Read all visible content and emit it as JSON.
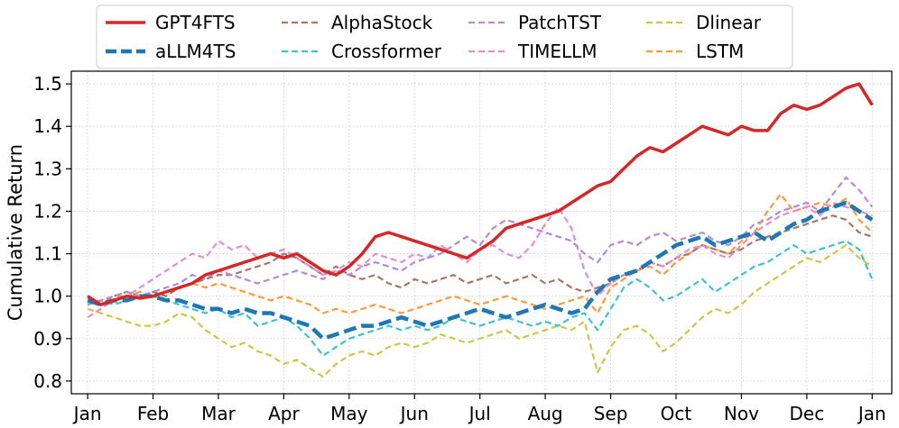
{
  "chart_data": {
    "type": "line",
    "title": "",
    "xlabel": "",
    "ylabel": "Cumulative Return",
    "ylim": [
      0.77,
      1.53
    ],
    "xlim": [
      -0.25,
      12.3
    ],
    "yticks": [
      0.8,
      0.9,
      1.0,
      1.1,
      1.2,
      1.3,
      1.4,
      1.5
    ],
    "ytick_labels": [
      "0.8",
      "0.9",
      "1.0",
      "1.1",
      "1.2",
      "1.3",
      "1.4",
      "1.5"
    ],
    "xticks": [
      0,
      1,
      2,
      3,
      4,
      5,
      6,
      7,
      8,
      9,
      10,
      11,
      12
    ],
    "xtick_labels": [
      "Jan",
      "Feb",
      "Mar",
      "Apr",
      "May",
      "Jun",
      "Jul",
      "Aug",
      "Sep",
      "Oct",
      "Nov",
      "Dec",
      "Jan"
    ],
    "grid": true,
    "legend_position": "top-outside",
    "legend_columns": 4,
    "series": [
      {
        "name": "GPT4FTS",
        "color": "#d62728",
        "style": "solid",
        "width": 3.5,
        "x": [
          0,
          0.2,
          0.4,
          0.6,
          0.8,
          1.0,
          1.2,
          1.4,
          1.6,
          1.8,
          2.0,
          2.2,
          2.4,
          2.6,
          2.8,
          3.0,
          3.2,
          3.4,
          3.6,
          3.8,
          4.0,
          4.2,
          4.4,
          4.6,
          4.8,
          5.0,
          5.2,
          5.4,
          5.6,
          5.8,
          6.0,
          6.2,
          6.4,
          6.6,
          6.8,
          7.0,
          7.2,
          7.4,
          7.6,
          7.8,
          8.0,
          8.2,
          8.4,
          8.6,
          8.8,
          9.0,
          9.2,
          9.4,
          9.6,
          9.8,
          10.0,
          10.2,
          10.4,
          10.6,
          10.8,
          11.0,
          11.2,
          11.4,
          11.6,
          11.8,
          12.0
        ],
        "y": [
          1.0,
          0.98,
          0.99,
          1.0,
          0.995,
          1.0,
          1.01,
          1.02,
          1.03,
          1.05,
          1.06,
          1.07,
          1.08,
          1.09,
          1.1,
          1.09,
          1.1,
          1.08,
          1.06,
          1.05,
          1.07,
          1.1,
          1.14,
          1.15,
          1.14,
          1.13,
          1.12,
          1.11,
          1.1,
          1.09,
          1.11,
          1.13,
          1.16,
          1.17,
          1.18,
          1.19,
          1.2,
          1.22,
          1.24,
          1.26,
          1.27,
          1.3,
          1.33,
          1.35,
          1.34,
          1.36,
          1.38,
          1.4,
          1.39,
          1.38,
          1.4,
          1.39,
          1.39,
          1.43,
          1.45,
          1.44,
          1.45,
          1.47,
          1.49,
          1.5,
          1.45
        ]
      },
      {
        "name": "aLLM4TS",
        "color": "#1f77b4",
        "style": "dash",
        "width": 4.5,
        "x": [
          0,
          0.2,
          0.4,
          0.6,
          0.8,
          1.0,
          1.2,
          1.4,
          1.6,
          1.8,
          2.0,
          2.2,
          2.4,
          2.6,
          2.8,
          3.0,
          3.2,
          3.4,
          3.6,
          3.8,
          4.0,
          4.2,
          4.4,
          4.6,
          4.8,
          5.0,
          5.2,
          5.4,
          5.6,
          5.8,
          6.0,
          6.2,
          6.4,
          6.6,
          6.8,
          7.0,
          7.2,
          7.4,
          7.6,
          7.8,
          8.0,
          8.2,
          8.4,
          8.6,
          8.8,
          9.0,
          9.2,
          9.4,
          9.6,
          9.8,
          10.0,
          10.2,
          10.4,
          10.6,
          10.8,
          11.0,
          11.2,
          11.4,
          11.6,
          11.8,
          12.0
        ],
        "y": [
          0.99,
          0.98,
          0.99,
          0.99,
          1.0,
          1.0,
          0.99,
          0.99,
          0.98,
          0.97,
          0.97,
          0.96,
          0.97,
          0.96,
          0.96,
          0.95,
          0.94,
          0.93,
          0.9,
          0.91,
          0.92,
          0.93,
          0.93,
          0.94,
          0.95,
          0.94,
          0.93,
          0.94,
          0.95,
          0.96,
          0.97,
          0.96,
          0.95,
          0.96,
          0.97,
          0.98,
          0.97,
          0.96,
          0.97,
          1.01,
          1.04,
          1.05,
          1.06,
          1.08,
          1.1,
          1.12,
          1.13,
          1.14,
          1.12,
          1.13,
          1.14,
          1.15,
          1.13,
          1.15,
          1.17,
          1.18,
          1.2,
          1.21,
          1.22,
          1.2,
          1.18
        ]
      },
      {
        "name": "AlphaStock",
        "color": "#a57764",
        "style": "dash",
        "width": 2.2,
        "x": [
          0,
          0.2,
          0.4,
          0.6,
          0.8,
          1.0,
          1.2,
          1.4,
          1.6,
          1.8,
          2.0,
          2.2,
          2.4,
          2.6,
          2.8,
          3.0,
          3.2,
          3.4,
          3.6,
          3.8,
          4.0,
          4.2,
          4.4,
          4.6,
          4.8,
          5.0,
          5.2,
          5.4,
          5.6,
          5.8,
          6.0,
          6.2,
          6.4,
          6.6,
          6.8,
          7.0,
          7.2,
          7.4,
          7.6,
          7.8,
          8.0,
          8.2,
          8.4,
          8.6,
          8.8,
          9.0,
          9.2,
          9.4,
          9.6,
          9.8,
          10.0,
          10.2,
          10.4,
          10.6,
          10.8,
          11.0,
          11.2,
          11.4,
          11.6,
          11.8,
          12.0
        ],
        "y": [
          0.99,
          0.98,
          1.0,
          1.01,
          1.0,
          1.01,
          1.0,
          1.02,
          1.03,
          1.04,
          1.05,
          1.05,
          1.06,
          1.07,
          1.08,
          1.1,
          1.09,
          1.07,
          1.05,
          1.07,
          1.05,
          1.04,
          1.05,
          1.03,
          1.02,
          1.04,
          1.03,
          1.04,
          1.05,
          1.03,
          1.04,
          1.05,
          1.03,
          1.04,
          1.05,
          1.03,
          1.04,
          1.02,
          1.01,
          1.02,
          1.03,
          1.05,
          1.06,
          1.08,
          1.07,
          1.09,
          1.1,
          1.12,
          1.11,
          1.1,
          1.11,
          1.13,
          1.14,
          1.15,
          1.16,
          1.17,
          1.18,
          1.19,
          1.18,
          1.15,
          1.14
        ]
      },
      {
        "name": "Crossformer",
        "color": "#3ec1d5",
        "style": "dash",
        "width": 2.2,
        "x": [
          0,
          0.2,
          0.4,
          0.6,
          0.8,
          1.0,
          1.2,
          1.4,
          1.6,
          1.8,
          2.0,
          2.2,
          2.4,
          2.6,
          2.8,
          3.0,
          3.2,
          3.4,
          3.6,
          3.8,
          4.0,
          4.2,
          4.4,
          4.6,
          4.8,
          5.0,
          5.2,
          5.4,
          5.6,
          5.8,
          6.0,
          6.2,
          6.4,
          6.6,
          6.8,
          7.0,
          7.2,
          7.4,
          7.6,
          7.8,
          8.0,
          8.2,
          8.4,
          8.6,
          8.8,
          9.0,
          9.2,
          9.4,
          9.6,
          9.8,
          10.0,
          10.2,
          10.4,
          10.6,
          10.8,
          11.0,
          11.2,
          11.4,
          11.6,
          11.8,
          12.0
        ],
        "y": [
          0.98,
          0.99,
          0.98,
          0.99,
          1.0,
          1.0,
          0.99,
          0.98,
          0.97,
          0.96,
          0.97,
          0.95,
          0.96,
          0.93,
          0.94,
          0.95,
          0.93,
          0.9,
          0.86,
          0.88,
          0.9,
          0.91,
          0.92,
          0.93,
          0.92,
          0.93,
          0.92,
          0.93,
          0.95,
          0.94,
          0.93,
          0.94,
          0.95,
          0.94,
          0.93,
          0.94,
          0.93,
          0.95,
          0.96,
          0.92,
          0.97,
          1.02,
          1.04,
          1.02,
          0.99,
          1.0,
          1.02,
          1.04,
          1.01,
          1.03,
          1.05,
          1.07,
          1.08,
          1.1,
          1.12,
          1.1,
          1.11,
          1.12,
          1.13,
          1.11,
          1.04
        ]
      },
      {
        "name": "PatchTST",
        "color": "#b08cd4",
        "style": "dash",
        "width": 2.2,
        "x": [
          0,
          0.2,
          0.4,
          0.6,
          0.8,
          1.0,
          1.2,
          1.4,
          1.6,
          1.8,
          2.0,
          2.2,
          2.4,
          2.6,
          2.8,
          3.0,
          3.2,
          3.4,
          3.6,
          3.8,
          4.0,
          4.2,
          4.4,
          4.6,
          4.8,
          5.0,
          5.2,
          5.4,
          5.6,
          5.8,
          6.0,
          6.2,
          6.4,
          6.6,
          6.8,
          7.0,
          7.2,
          7.4,
          7.6,
          7.8,
          8.0,
          8.2,
          8.4,
          8.6,
          8.8,
          9.0,
          9.2,
          9.4,
          9.6,
          9.8,
          10.0,
          10.2,
          10.4,
          10.6,
          10.8,
          11.0,
          11.2,
          11.4,
          11.6,
          11.8,
          12.0
        ],
        "y": [
          0.98,
          0.99,
          1.0,
          1.01,
          1.0,
          1.01,
          1.02,
          1.03,
          1.05,
          1.04,
          1.06,
          1.05,
          1.04,
          1.03,
          1.04,
          1.05,
          1.06,
          1.05,
          1.04,
          1.06,
          1.05,
          1.07,
          1.08,
          1.07,
          1.06,
          1.08,
          1.09,
          1.1,
          1.12,
          1.14,
          1.12,
          1.16,
          1.18,
          1.17,
          1.16,
          1.15,
          1.14,
          1.13,
          1.1,
          1.08,
          1.12,
          1.13,
          1.12,
          1.14,
          1.15,
          1.13,
          1.14,
          1.15,
          1.13,
          1.12,
          1.14,
          1.17,
          1.18,
          1.2,
          1.21,
          1.22,
          1.2,
          1.24,
          1.28,
          1.25,
          1.21
        ]
      },
      {
        "name": "TIMELLM",
        "color": "#e68ecb",
        "style": "dash",
        "width": 2.2,
        "x": [
          0,
          0.2,
          0.4,
          0.6,
          0.8,
          1.0,
          1.2,
          1.4,
          1.6,
          1.8,
          2.0,
          2.2,
          2.4,
          2.6,
          2.8,
          3.0,
          3.2,
          3.4,
          3.6,
          3.8,
          4.0,
          4.2,
          4.4,
          4.6,
          4.8,
          5.0,
          5.2,
          5.4,
          5.6,
          5.8,
          6.0,
          6.2,
          6.4,
          6.6,
          6.8,
          7.0,
          7.2,
          7.4,
          7.6,
          7.8,
          8.0,
          8.2,
          8.4,
          8.6,
          8.8,
          9.0,
          9.2,
          9.4,
          9.6,
          9.8,
          10.0,
          10.2,
          10.4,
          10.6,
          10.8,
          11.0,
          11.2,
          11.4,
          11.6,
          11.8,
          12.0
        ],
        "y": [
          0.95,
          0.97,
          0.99,
          1.0,
          1.02,
          1.04,
          1.06,
          1.08,
          1.1,
          1.09,
          1.13,
          1.11,
          1.12,
          1.09,
          1.1,
          1.11,
          1.09,
          1.07,
          1.05,
          1.06,
          1.08,
          1.07,
          1.1,
          1.09,
          1.08,
          1.1,
          1.09,
          1.12,
          1.1,
          1.08,
          1.11,
          1.12,
          1.1,
          1.09,
          1.12,
          1.17,
          1.21,
          1.16,
          1.06,
          1.0,
          1.03,
          1.05,
          1.06,
          1.08,
          1.07,
          1.09,
          1.11,
          1.12,
          1.1,
          1.09,
          1.12,
          1.15,
          1.17,
          1.19,
          1.2,
          1.21,
          1.19,
          1.22,
          1.21,
          1.2,
          1.19
        ]
      },
      {
        "name": "Dlinear",
        "color": "#c9c84a",
        "style": "dash",
        "width": 2.2,
        "x": [
          0,
          0.2,
          0.4,
          0.6,
          0.8,
          1.0,
          1.2,
          1.4,
          1.6,
          1.8,
          2.0,
          2.2,
          2.4,
          2.6,
          2.8,
          3.0,
          3.2,
          3.4,
          3.6,
          3.8,
          4.0,
          4.2,
          4.4,
          4.6,
          4.8,
          5.0,
          5.2,
          5.4,
          5.6,
          5.8,
          6.0,
          6.2,
          6.4,
          6.6,
          6.8,
          7.0,
          7.2,
          7.4,
          7.6,
          7.8,
          8.0,
          8.2,
          8.4,
          8.6,
          8.8,
          9.0,
          9.2,
          9.4,
          9.6,
          9.8,
          10.0,
          10.2,
          10.4,
          10.6,
          10.8,
          11.0,
          11.2,
          11.4,
          11.6,
          11.8,
          12.0
        ],
        "y": [
          0.97,
          0.96,
          0.95,
          0.94,
          0.93,
          0.93,
          0.94,
          0.96,
          0.95,
          0.92,
          0.9,
          0.88,
          0.89,
          0.87,
          0.86,
          0.84,
          0.85,
          0.83,
          0.81,
          0.84,
          0.86,
          0.87,
          0.86,
          0.88,
          0.89,
          0.88,
          0.89,
          0.91,
          0.9,
          0.89,
          0.9,
          0.91,
          0.92,
          0.9,
          0.91,
          0.92,
          0.93,
          0.92,
          0.94,
          0.82,
          0.88,
          0.92,
          0.93,
          0.91,
          0.87,
          0.89,
          0.92,
          0.95,
          0.97,
          0.96,
          0.98,
          1.01,
          1.03,
          1.05,
          1.07,
          1.09,
          1.08,
          1.1,
          1.12,
          1.09,
          1.07
        ]
      },
      {
        "name": "LSTM",
        "color": "#ff9a3c",
        "style": "dash",
        "width": 2.2,
        "x": [
          0,
          0.2,
          0.4,
          0.6,
          0.8,
          1.0,
          1.2,
          1.4,
          1.6,
          1.8,
          2.0,
          2.2,
          2.4,
          2.6,
          2.8,
          3.0,
          3.2,
          3.4,
          3.6,
          3.8,
          4.0,
          4.2,
          4.4,
          4.6,
          4.8,
          5.0,
          5.2,
          5.4,
          5.6,
          5.8,
          6.0,
          6.2,
          6.4,
          6.6,
          6.8,
          7.0,
          7.2,
          7.4,
          7.6,
          7.8,
          8.0,
          8.2,
          8.4,
          8.6,
          8.8,
          9.0,
          9.2,
          9.4,
          9.6,
          9.8,
          10.0,
          10.2,
          10.4,
          10.6,
          10.8,
          11.0,
          11.2,
          11.4,
          11.6,
          11.8,
          12.0
        ],
        "y": [
          0.98,
          0.99,
          1.0,
          1.0,
          1.01,
          1.0,
          1.01,
          1.02,
          1.03,
          1.02,
          1.03,
          1.02,
          1.01,
          1.0,
          0.99,
          1.0,
          0.99,
          0.98,
          0.96,
          0.97,
          0.96,
          0.97,
          0.98,
          0.97,
          0.96,
          0.97,
          0.98,
          0.99,
          1.0,
          0.99,
          0.98,
          0.99,
          1.0,
          0.99,
          0.98,
          0.97,
          0.98,
          0.99,
          1.0,
          0.96,
          1.02,
          1.04,
          1.06,
          1.07,
          1.05,
          1.08,
          1.1,
          1.12,
          1.11,
          1.1,
          1.13,
          1.15,
          1.2,
          1.24,
          1.2,
          1.21,
          1.22,
          1.21,
          1.23,
          1.18,
          1.15
        ]
      }
    ]
  }
}
